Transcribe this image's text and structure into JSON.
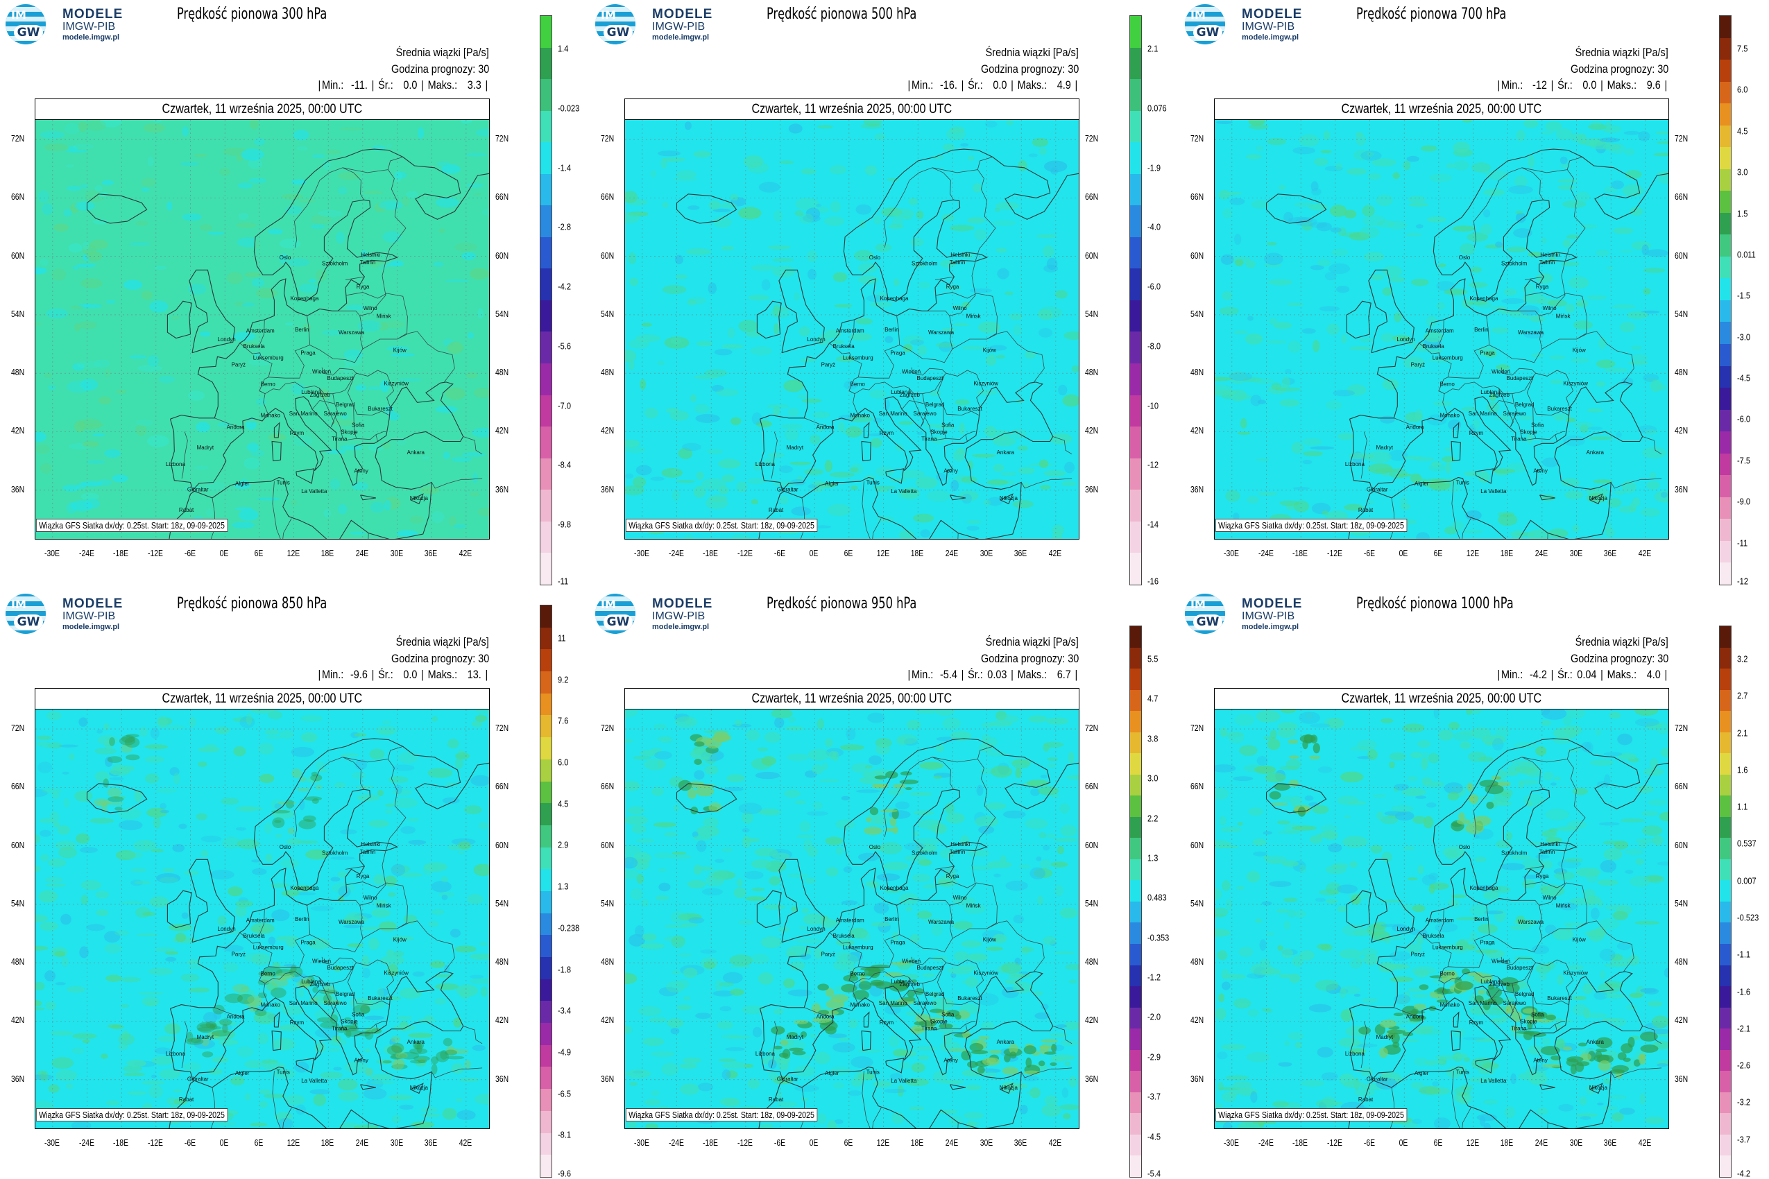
{
  "logo": {
    "line1": "MODELE",
    "line2": "IMGW-PIB",
    "line3": "modele.imgw.pl",
    "letters_top": "IM",
    "letters_bottom": "GW"
  },
  "common": {
    "units": "Średnia wiązki [Pa/s]",
    "forecast_hour": "Godzina prognozy: 30",
    "date": "Czwartek, 11 września 2025, 00:00 UTC",
    "footer": "Wiązka GFS Siatka dx/dy: 0.25st. Start: 18z, 09-09-2025",
    "min_label": "Min.:",
    "mean_label": "Śr.:",
    "max_label": "Maks.:",
    "lat_labels": [
      "72N",
      "66N",
      "60N",
      "54N",
      "48N",
      "42N",
      "36N"
    ],
    "lon_labels": [
      "-30E",
      "-24E",
      "-18E",
      "-12E",
      "-6E",
      "0E",
      "6E",
      "12E",
      "18E",
      "24E",
      "30E",
      "36E",
      "42E"
    ],
    "cities": [
      "Oslo",
      "Sztokholm",
      "Helsinki",
      "Tallinn",
      "Ryga",
      "Kopenhaga",
      "Wilno",
      "Mińsk",
      "Amsterdam",
      "Berlin",
      "Warszawa",
      "Kijów",
      "Londyn",
      "Bruksela",
      "Luksemburg",
      "Praga",
      "Paryż",
      "Wiedeń",
      "Kiszyniów",
      "Berno",
      "Budapeszt",
      "Lublana",
      "Zagrzeb",
      "Bukareszt",
      "Belgrad",
      "Sarajewo",
      "Monako",
      "San Marino",
      "Sofia",
      "Skopje",
      "Andora",
      "Rzym",
      "Tirana",
      "Madryt",
      "Ankara",
      "Lizbona",
      "Ateny",
      "Gibraltar",
      "Algier",
      "Tunis",
      "La Valletta",
      "Rabat",
      "Nikozja"
    ]
  },
  "colors": {
    "background_field": "#3fe0b8",
    "ocean_field": "#22e3ea",
    "positive_green": "#3cb371",
    "coast": "#333333"
  },
  "panels": [
    {
      "title": "Prędkość pionowa 300 hPa",
      "min": "-11.",
      "mean": "0.0",
      "max": "3.3",
      "scale": [
        "1.4",
        "-0.023",
        "-1.4",
        "-2.8",
        "-4.2",
        "-5.6",
        "-7.0",
        "-8.4",
        "-9.8",
        "-11"
      ],
      "palette": "pink_purple_blue_cyan_green",
      "dominant": "green"
    },
    {
      "title": "Prędkość pionowa 500 hPa",
      "min": "-16.",
      "mean": "0.0",
      "max": "4.9",
      "scale": [
        "2.1",
        "0.076",
        "-1.9",
        "-4.0",
        "-6.0",
        "-8.0",
        "-10",
        "-12",
        "-14",
        "-16"
      ],
      "palette": "pink_purple_blue_cyan_green",
      "dominant": "cyan"
    },
    {
      "title": "Prędkość pionowa 700 hPa",
      "min": "-12",
      "mean": "0.0",
      "max": "9.6",
      "scale": [
        "7.5",
        "6.0",
        "4.5",
        "3.0",
        "1.5",
        "0.011",
        "-1.5",
        "-3.0",
        "-4.5",
        "-6.0",
        "-7.5",
        "-9.0",
        "-11",
        "-12"
      ],
      "palette": "full",
      "dominant": "cyan"
    },
    {
      "title": "Prędkość pionowa 850 hPa",
      "min": "-9.6",
      "mean": "0.0",
      "max": "13.",
      "scale": [
        "11",
        "9.2",
        "7.6",
        "6.0",
        "4.5",
        "2.9",
        "1.3",
        "-0.238",
        "-1.8",
        "-3.4",
        "-4.9",
        "-6.5",
        "-8.1",
        "-9.6"
      ],
      "palette": "full",
      "dominant": "cyan"
    },
    {
      "title": "Prędkość pionowa 950 hPa",
      "min": "-5.4",
      "mean": "0.03",
      "max": "6.7",
      "scale": [
        "5.5",
        "4.7",
        "3.8",
        "3.0",
        "2.2",
        "1.3",
        "0.483",
        "-0.353",
        "-1.2",
        "-2.0",
        "-2.9",
        "-3.7",
        "-4.5",
        "-5.4"
      ],
      "palette": "full",
      "dominant": "cyan"
    },
    {
      "title": "Prędkość pionowa 1000 hPa",
      "min": "-4.2",
      "mean": "0.04",
      "max": "4.0",
      "scale": [
        "3.2",
        "2.7",
        "2.1",
        "1.6",
        "1.1",
        "0.537",
        "0.007",
        "-0.523",
        "-1.1",
        "-1.6",
        "-2.1",
        "-2.6",
        "-3.2",
        "-3.7",
        "-4.2"
      ],
      "palette": "full",
      "dominant": "cyan"
    }
  ]
}
